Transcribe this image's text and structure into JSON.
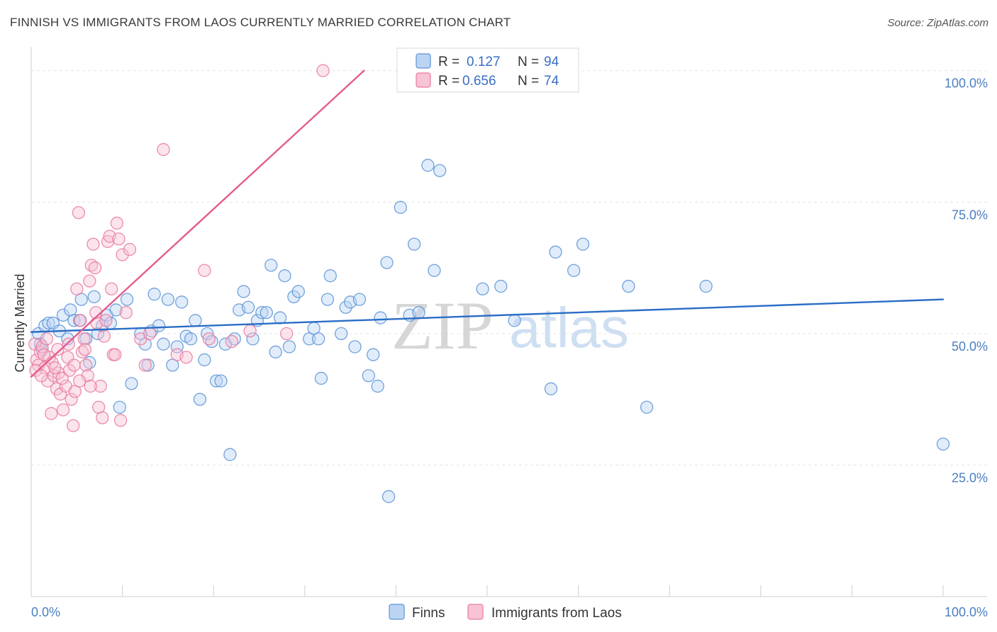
{
  "title": "FINNISH VS IMMIGRANTS FROM LAOS CURRENTLY MARRIED CORRELATION CHART",
  "source": "Source: ZipAtlas.com",
  "watermark": {
    "part1": "ZIP",
    "part2": "atlas"
  },
  "chart_data": {
    "type": "scatter",
    "xlabel": "",
    "ylabel": "Currently Married",
    "xlim": [
      0,
      100
    ],
    "ylim": [
      0,
      104
    ],
    "x_tick_labels": [
      "0.0%",
      "100.0%"
    ],
    "y_ticks": [
      {
        "value": 100,
        "label": "100.0%"
      },
      {
        "value": 75,
        "label": "75.0%"
      },
      {
        "value": 50,
        "label": "50.0%"
      },
      {
        "value": 25,
        "label": "25.0%"
      }
    ],
    "legend": {
      "r_label": "R =",
      "n_label": "N =",
      "entries": [
        {
          "name": "Finns",
          "r": "0.127",
          "n": "94"
        },
        {
          "name": "Immigrants from Laos",
          "r": "0.656",
          "n": "74"
        }
      ]
    },
    "series": [
      {
        "name": "Finns",
        "color": "#5b93d6",
        "fill": "#bcd4f3",
        "line_color": "#2a6dc6",
        "trend": {
          "x0": 0,
          "y0": 50.3,
          "x1": 100,
          "y1": 56.5
        },
        "points": [
          [
            0.8,
            50
          ],
          [
            1.0,
            48
          ],
          [
            1.2,
            47
          ],
          [
            1.5,
            51.5
          ],
          [
            1.9,
            52
          ],
          [
            2.4,
            52
          ],
          [
            3.1,
            50.5
          ],
          [
            3.5,
            53.5
          ],
          [
            4.0,
            49
          ],
          [
            4.3,
            54.5
          ],
          [
            4.7,
            52.5
          ],
          [
            5.3,
            52.5
          ],
          [
            5.5,
            56.5
          ],
          [
            6.0,
            49
          ],
          [
            6.4,
            44.5
          ],
          [
            6.9,
            57
          ],
          [
            7.3,
            50
          ],
          [
            7.8,
            51.5
          ],
          [
            8.3,
            53.5
          ],
          [
            8.7,
            52
          ],
          [
            9.3,
            54.5
          ],
          [
            9.7,
            36
          ],
          [
            10.5,
            56.5
          ],
          [
            11.0,
            40.5
          ],
          [
            12.0,
            50
          ],
          [
            12.5,
            48
          ],
          [
            12.8,
            44
          ],
          [
            13.2,
            50.5
          ],
          [
            13.5,
            57.5
          ],
          [
            14.0,
            51.5
          ],
          [
            14.5,
            48
          ],
          [
            15.0,
            56.5
          ],
          [
            15.5,
            44
          ],
          [
            16.0,
            47.5
          ],
          [
            16.5,
            56
          ],
          [
            17.0,
            49.5
          ],
          [
            17.5,
            49
          ],
          [
            18.0,
            52.5
          ],
          [
            18.5,
            37.5
          ],
          [
            19.0,
            45
          ],
          [
            19.3,
            50
          ],
          [
            19.8,
            48.5
          ],
          [
            20.3,
            41
          ],
          [
            20.8,
            41
          ],
          [
            21.3,
            48
          ],
          [
            21.8,
            27
          ],
          [
            22.3,
            49
          ],
          [
            22.8,
            54.5
          ],
          [
            23.3,
            58
          ],
          [
            23.8,
            55
          ],
          [
            24.3,
            49
          ],
          [
            24.8,
            52.5
          ],
          [
            25.3,
            54
          ],
          [
            25.8,
            54
          ],
          [
            26.3,
            63
          ],
          [
            26.8,
            46.5
          ],
          [
            27.3,
            53
          ],
          [
            27.8,
            61
          ],
          [
            28.3,
            47.5
          ],
          [
            28.8,
            57
          ],
          [
            29.3,
            58
          ],
          [
            30.5,
            49
          ],
          [
            31.0,
            51
          ],
          [
            31.5,
            49
          ],
          [
            31.8,
            41.5
          ],
          [
            32.5,
            56.5
          ],
          [
            32.8,
            61
          ],
          [
            34.0,
            50
          ],
          [
            34.5,
            55
          ],
          [
            35.0,
            56
          ],
          [
            35.5,
            47.5
          ],
          [
            36.0,
            56.5
          ],
          [
            37.0,
            42
          ],
          [
            37.5,
            46
          ],
          [
            38.0,
            40
          ],
          [
            38.3,
            53
          ],
          [
            39.0,
            63.5
          ],
          [
            40.5,
            74
          ],
          [
            41.5,
            53.5
          ],
          [
            42.0,
            67
          ],
          [
            42.5,
            54
          ],
          [
            43.5,
            82
          ],
          [
            44.2,
            62
          ],
          [
            44.8,
            81
          ],
          [
            49.5,
            58.5
          ],
          [
            51.5,
            59
          ],
          [
            53.0,
            52.5
          ],
          [
            57.0,
            39.5
          ],
          [
            57.5,
            65.5
          ],
          [
            59.5,
            62
          ],
          [
            60.5,
            67
          ],
          [
            65.5,
            59
          ],
          [
            67.5,
            36
          ],
          [
            74.0,
            59
          ],
          [
            100,
            29
          ],
          [
            39.2,
            19
          ]
        ]
      },
      {
        "name": "Immigrants from Laos",
        "color": "#e97aa0",
        "fill": "#f6c4d4",
        "line_color": "#e35d8e",
        "trend": {
          "x0": 0,
          "y0": 41.8,
          "x1": 36.5,
          "y1": 100
        },
        "points": [
          [
            0.4,
            48
          ],
          [
            0.6,
            45
          ],
          [
            0.8,
            44
          ],
          [
            1.0,
            46.5
          ],
          [
            1.2,
            47.5
          ],
          [
            1.5,
            43.5
          ],
          [
            1.8,
            41
          ],
          [
            2.0,
            45.5
          ],
          [
            2.2,
            34.8
          ],
          [
            2.5,
            42
          ],
          [
            2.8,
            39.5
          ],
          [
            3.0,
            42.5
          ],
          [
            3.2,
            38.5
          ],
          [
            3.5,
            35.5
          ],
          [
            3.8,
            40
          ],
          [
            4.0,
            45.5
          ],
          [
            4.2,
            43
          ],
          [
            4.4,
            37.5
          ],
          [
            4.6,
            32.5
          ],
          [
            4.8,
            39
          ],
          [
            5.0,
            58.5
          ],
          [
            5.2,
            73
          ],
          [
            5.4,
            52.5
          ],
          [
            5.6,
            46.5
          ],
          [
            5.8,
            49
          ],
          [
            6.0,
            44
          ],
          [
            6.2,
            42
          ],
          [
            6.4,
            60
          ],
          [
            6.6,
            63
          ],
          [
            6.8,
            67
          ],
          [
            7.0,
            62.5
          ],
          [
            7.2,
            52
          ],
          [
            7.4,
            36
          ],
          [
            7.6,
            40
          ],
          [
            7.8,
            34
          ],
          [
            8.0,
            49.5
          ],
          [
            8.2,
            52.5
          ],
          [
            8.4,
            67.5
          ],
          [
            8.6,
            68.5
          ],
          [
            8.8,
            58.5
          ],
          [
            9.0,
            46
          ],
          [
            9.2,
            46
          ],
          [
            9.4,
            71
          ],
          [
            9.6,
            68
          ],
          [
            9.8,
            33.5
          ],
          [
            10.0,
            65
          ],
          [
            10.4,
            54
          ],
          [
            10.8,
            66
          ],
          [
            12.0,
            49
          ],
          [
            12.5,
            44
          ],
          [
            13.0,
            50
          ],
          [
            14.5,
            85
          ],
          [
            16.0,
            46
          ],
          [
            17.0,
            45.5
          ],
          [
            19.0,
            62
          ],
          [
            19.5,
            49
          ],
          [
            22.0,
            48.5
          ],
          [
            24.0,
            50.5
          ],
          [
            28.0,
            50
          ],
          [
            32.0,
            100
          ],
          [
            0.5,
            43
          ],
          [
            1.1,
            42
          ],
          [
            1.7,
            49
          ],
          [
            2.3,
            44.5
          ],
          [
            2.9,
            47
          ],
          [
            3.4,
            41.5
          ],
          [
            4.1,
            48
          ],
          [
            4.7,
            44
          ],
          [
            5.3,
            41
          ],
          [
            5.9,
            47
          ],
          [
            6.5,
            40
          ],
          [
            7.1,
            54
          ],
          [
            1.4,
            46
          ],
          [
            2.6,
            43.5
          ]
        ]
      }
    ]
  }
}
